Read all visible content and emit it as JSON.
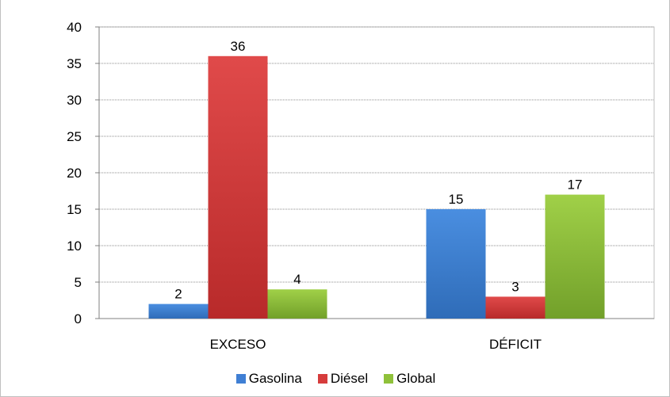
{
  "chart_data": {
    "type": "bar",
    "categories": [
      "EXCESO",
      "DÉFICIT"
    ],
    "series": [
      {
        "name": "Gasolina",
        "values": [
          2,
          15
        ],
        "color": "#3f7fd4"
      },
      {
        "name": "Diésel",
        "values": [
          36,
          3
        ],
        "color": "#d63c3c"
      },
      {
        "name": "Global",
        "values": [
          4,
          17
        ],
        "color": "#8fc13a"
      }
    ],
    "ylim": [
      0,
      40
    ],
    "yticks": [
      0,
      5,
      10,
      15,
      20,
      25,
      30,
      35,
      40
    ],
    "grid": true,
    "legend": "bottom"
  }
}
